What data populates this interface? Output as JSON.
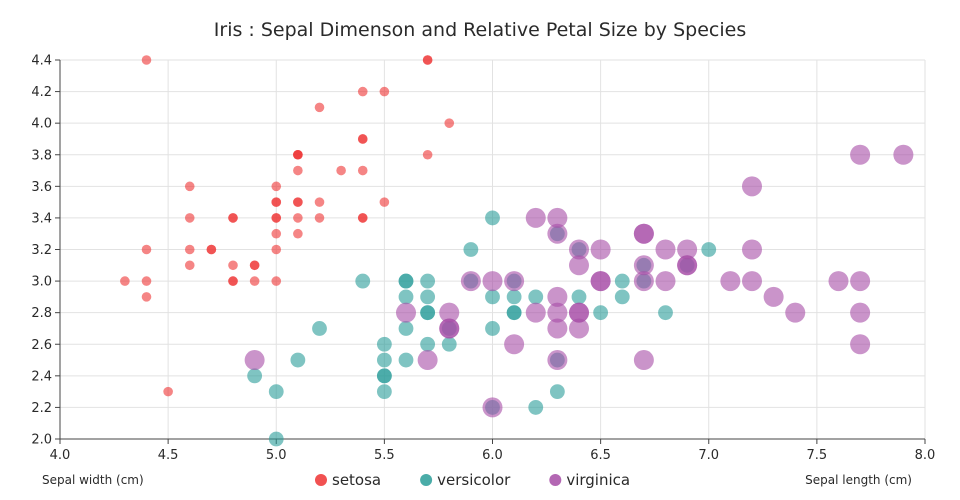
{
  "chart_data": {
    "type": "scatter",
    "title": "Iris : Sepal Dimenson and Relative Petal Size by Species",
    "xlabel": "Sepal length (cm)",
    "ylabel": "Sepal width (cm)",
    "xlim": [
      4.0,
      8.0
    ],
    "ylim": [
      2.0,
      4.4
    ],
    "x_ticks": [
      4.0,
      4.5,
      5.0,
      5.5,
      6.0,
      6.5,
      7.0,
      7.5,
      8.0
    ],
    "y_ticks": [
      2.0,
      2.2,
      2.4,
      2.6,
      2.8,
      3.0,
      3.2,
      3.4,
      3.6,
      3.8,
      4.0,
      4.2,
      4.4
    ],
    "grid": true,
    "legend_position": "bottom-center",
    "size_encoding": "relative petal size",
    "series": [
      {
        "name": "setosa",
        "color": "#ee3333",
        "size": 1,
        "points": [
          [
            4.4,
            4.4
          ],
          [
            5.7,
            4.4
          ],
          [
            5.7,
            4.4
          ],
          [
            5.4,
            4.2
          ],
          [
            5.8,
            4.0
          ],
          [
            5.2,
            4.1
          ],
          [
            5.5,
            4.2
          ],
          [
            5.7,
            3.8
          ],
          [
            5.1,
            3.8
          ],
          [
            5.1,
            3.8
          ],
          [
            5.1,
            3.8
          ],
          [
            5.0,
            3.6
          ],
          [
            4.6,
            3.6
          ],
          [
            5.4,
            3.9
          ],
          [
            5.4,
            3.9
          ],
          [
            5.1,
            3.7
          ],
          [
            5.3,
            3.7
          ],
          [
            5.4,
            3.7
          ],
          [
            5.1,
            3.5
          ],
          [
            5.1,
            3.5
          ],
          [
            5.0,
            3.5
          ],
          [
            5.0,
            3.5
          ],
          [
            5.2,
            3.5
          ],
          [
            5.5,
            3.5
          ],
          [
            5.0,
            3.4
          ],
          [
            5.0,
            3.4
          ],
          [
            4.8,
            3.4
          ],
          [
            4.8,
            3.4
          ],
          [
            5.1,
            3.4
          ],
          [
            5.2,
            3.4
          ],
          [
            5.4,
            3.4
          ],
          [
            5.4,
            3.4
          ],
          [
            4.6,
            3.4
          ],
          [
            5.0,
            3.3
          ],
          [
            5.1,
            3.3
          ],
          [
            5.0,
            3.2
          ],
          [
            4.4,
            3.2
          ],
          [
            4.6,
            3.2
          ],
          [
            4.7,
            3.2
          ],
          [
            4.7,
            3.2
          ],
          [
            4.6,
            3.1
          ],
          [
            4.8,
            3.1
          ],
          [
            4.9,
            3.1
          ],
          [
            4.9,
            3.1
          ],
          [
            4.3,
            3.0
          ],
          [
            4.4,
            3.0
          ],
          [
            4.8,
            3.0
          ],
          [
            4.8,
            3.0
          ],
          [
            4.9,
            3.0
          ],
          [
            5.0,
            3.0
          ],
          [
            4.4,
            2.9
          ],
          [
            4.5,
            2.3
          ]
        ]
      },
      {
        "name": "versicolor",
        "color": "#2a9d99",
        "size": 2,
        "points": [
          [
            6.0,
            3.4
          ],
          [
            5.9,
            3.2
          ],
          [
            7.0,
            3.2
          ],
          [
            6.4,
            3.2
          ],
          [
            6.3,
            3.3
          ],
          [
            5.4,
            3.0
          ],
          [
            5.6,
            3.0
          ],
          [
            5.6,
            3.0
          ],
          [
            5.7,
            3.0
          ],
          [
            5.9,
            3.0
          ],
          [
            6.1,
            3.0
          ],
          [
            6.6,
            3.0
          ],
          [
            6.7,
            3.0
          ],
          [
            6.7,
            3.1
          ],
          [
            6.9,
            3.1
          ],
          [
            5.6,
            2.9
          ],
          [
            5.7,
            2.9
          ],
          [
            6.0,
            2.9
          ],
          [
            6.1,
            2.9
          ],
          [
            6.2,
            2.9
          ],
          [
            6.4,
            2.9
          ],
          [
            6.6,
            2.9
          ],
          [
            5.7,
            2.8
          ],
          [
            5.7,
            2.8
          ],
          [
            6.1,
            2.8
          ],
          [
            6.1,
            2.8
          ],
          [
            6.5,
            2.8
          ],
          [
            6.8,
            2.8
          ],
          [
            5.2,
            2.7
          ],
          [
            5.6,
            2.7
          ],
          [
            5.8,
            2.7
          ],
          [
            6.0,
            2.7
          ],
          [
            5.5,
            2.6
          ],
          [
            5.7,
            2.6
          ],
          [
            5.8,
            2.6
          ],
          [
            5.1,
            2.5
          ],
          [
            5.5,
            2.5
          ],
          [
            5.6,
            2.5
          ],
          [
            6.3,
            2.5
          ],
          [
            4.9,
            2.4
          ],
          [
            5.5,
            2.4
          ],
          [
            5.5,
            2.4
          ],
          [
            5.0,
            2.3
          ],
          [
            5.5,
            2.3
          ],
          [
            6.3,
            2.3
          ],
          [
            6.0,
            2.2
          ],
          [
            6.2,
            2.2
          ],
          [
            5.0,
            2.0
          ]
        ]
      },
      {
        "name": "virginica",
        "color": "#a64ca6",
        "size": 3,
        "points": [
          [
            7.7,
            3.8
          ],
          [
            7.9,
            3.8
          ],
          [
            7.2,
            3.6
          ],
          [
            6.2,
            3.4
          ],
          [
            6.3,
            3.4
          ],
          [
            6.3,
            3.3
          ],
          [
            6.7,
            3.3
          ],
          [
            6.7,
            3.3
          ],
          [
            6.4,
            3.2
          ],
          [
            6.5,
            3.2
          ],
          [
            6.8,
            3.2
          ],
          [
            6.9,
            3.2
          ],
          [
            7.2,
            3.2
          ],
          [
            6.4,
            3.1
          ],
          [
            6.7,
            3.1
          ],
          [
            6.9,
            3.1
          ],
          [
            6.9,
            3.1
          ],
          [
            5.9,
            3.0
          ],
          [
            6.0,
            3.0
          ],
          [
            6.1,
            3.0
          ],
          [
            6.5,
            3.0
          ],
          [
            6.5,
            3.0
          ],
          [
            6.7,
            3.0
          ],
          [
            6.8,
            3.0
          ],
          [
            7.1,
            3.0
          ],
          [
            7.2,
            3.0
          ],
          [
            7.6,
            3.0
          ],
          [
            7.7,
            3.0
          ],
          [
            6.3,
            2.9
          ],
          [
            7.3,
            2.9
          ],
          [
            5.6,
            2.8
          ],
          [
            5.8,
            2.8
          ],
          [
            6.2,
            2.8
          ],
          [
            6.3,
            2.8
          ],
          [
            6.4,
            2.8
          ],
          [
            6.4,
            2.8
          ],
          [
            7.4,
            2.8
          ],
          [
            7.7,
            2.8
          ],
          [
            5.8,
            2.7
          ],
          [
            5.8,
            2.7
          ],
          [
            6.3,
            2.7
          ],
          [
            6.4,
            2.7
          ],
          [
            6.1,
            2.6
          ],
          [
            7.7,
            2.6
          ],
          [
            4.9,
            2.5
          ],
          [
            5.7,
            2.5
          ],
          [
            6.3,
            2.5
          ],
          [
            6.7,
            2.5
          ],
          [
            6.0,
            2.2
          ]
        ]
      }
    ]
  }
}
